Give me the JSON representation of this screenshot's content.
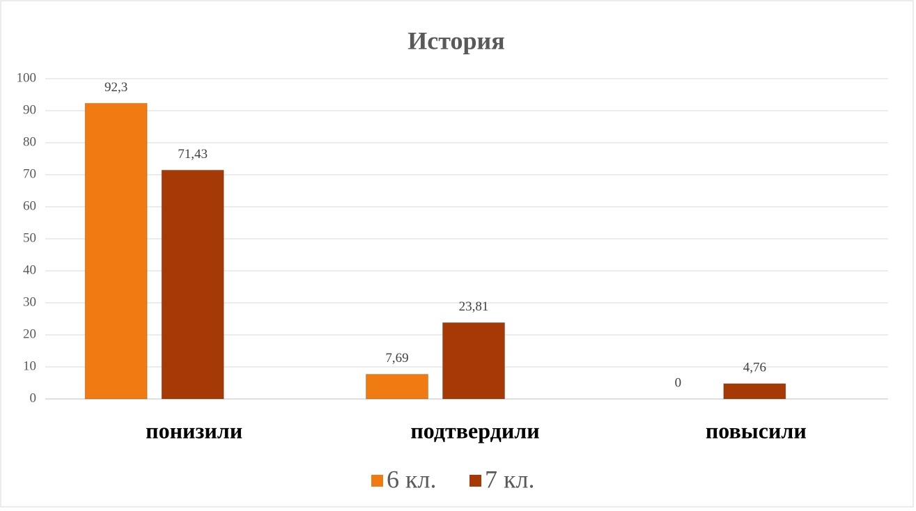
{
  "chart_data": {
    "type": "bar",
    "title": "История",
    "categories": [
      "понизили",
      "подтвердили",
      "повысили"
    ],
    "series": [
      {
        "name": "6 кл.",
        "color": "#f07b12",
        "values": [
          92.3,
          7.69,
          0
        ],
        "value_labels": [
          "92,3",
          "7,69",
          "0"
        ]
      },
      {
        "name": "7 кл.",
        "color": "#a53a06",
        "values": [
          71.43,
          23.81,
          4.76
        ],
        "value_labels": [
          "71,43",
          "23,81",
          "4,76"
        ]
      }
    ],
    "ylim": [
      0,
      100
    ],
    "yticks": [
      0,
      10,
      20,
      30,
      40,
      50,
      60,
      70,
      80,
      90,
      100
    ],
    "grid": true,
    "legend": "bottom"
  }
}
